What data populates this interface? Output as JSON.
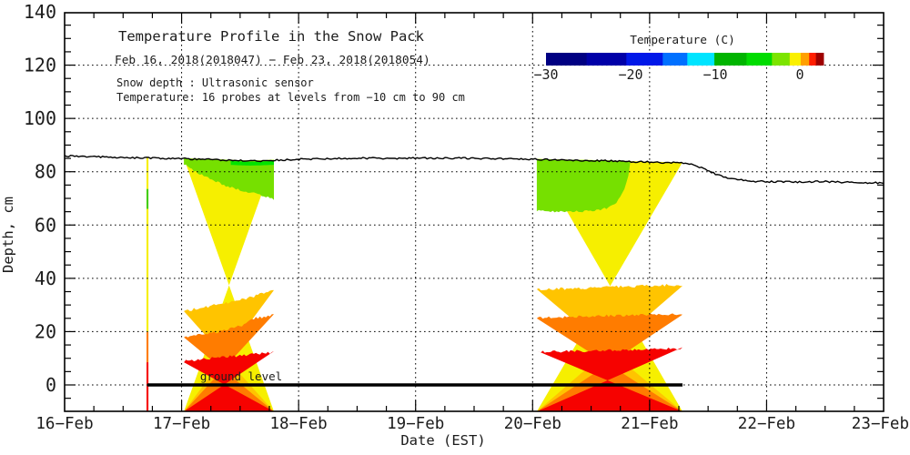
{
  "chart_data": {
    "type": "heatmap",
    "title": "Temperature Profile in the Snow Pack",
    "subtitle": "Feb 16, 2018(2018047) − Feb 23, 2018(2018054)",
    "note1": "Snow depth : Ultrasonic sensor",
    "note2": "Temperature: 16 probes at levels from −10 cm to 90 cm",
    "xlabel": "Date (EST)",
    "ylabel": "Depth, cm",
    "ground_label": "ground level",
    "plot": {
      "x_range_days": [
        16,
        23
      ],
      "ylim": [
        -10,
        140
      ],
      "grid_depths": [
        0,
        20,
        40,
        60,
        80,
        100,
        120
      ],
      "grid_days": [
        17,
        18,
        19,
        20,
        21,
        22
      ],
      "y_minor_step": 5,
      "x_minor_step_day": 0.25
    },
    "y_axis": {
      "ticks": [
        {
          "v": 0,
          "l": "0"
        },
        {
          "v": 20,
          "l": "20"
        },
        {
          "v": 40,
          "l": "40"
        },
        {
          "v": 60,
          "l": "60"
        },
        {
          "v": 80,
          "l": "80"
        },
        {
          "v": 100,
          "l": "100"
        },
        {
          "v": 120,
          "l": "120"
        },
        {
          "v": 140,
          "l": "140"
        }
      ]
    },
    "x_axis": {
      "ticks": [
        {
          "v": 16,
          "l": "16−Feb"
        },
        {
          "v": 17,
          "l": "17−Feb"
        },
        {
          "v": 18,
          "l": "18−Feb"
        },
        {
          "v": 19,
          "l": "19−Feb"
        },
        {
          "v": 20,
          "l": "20−Feb"
        },
        {
          "v": 21,
          "l": "21−Feb"
        },
        {
          "v": 22,
          "l": "22−Feb"
        },
        {
          "v": 23,
          "l": "23−Feb"
        }
      ]
    },
    "colorbar": {
      "title": "Temperature (C)",
      "range": [
        -30,
        2.8
      ],
      "ticks": [
        {
          "value": -30,
          "label": "−30"
        },
        {
          "value": -20,
          "label": "−20"
        },
        {
          "value": -10,
          "label": "−10"
        },
        {
          "value": 0,
          "label": "0"
        }
      ],
      "segments": [
        {
          "from": -30.0,
          "to": -25.2,
          "color": "#000082"
        },
        {
          "from": -25.2,
          "to": -20.5,
          "color": "#0000A8"
        },
        {
          "from": -20.5,
          "to": -16.2,
          "color": "#0018E8"
        },
        {
          "from": -16.2,
          "to": -13.3,
          "color": "#0070FF"
        },
        {
          "from": -13.3,
          "to": -10.1,
          "color": "#00E4FF"
        },
        {
          "from": -10.1,
          "to": -6.3,
          "color": "#00B400"
        },
        {
          "from": -6.3,
          "to": -3.3,
          "color": "#00DC00"
        },
        {
          "from": -3.3,
          "to": -1.2,
          "color": "#7CE400"
        },
        {
          "from": -1.2,
          "to": 0.1,
          "color": "#FAF000"
        },
        {
          "from": 0.1,
          "to": 1.1,
          "color": "#FFA000"
        },
        {
          "from": 1.1,
          "to": 1.9,
          "color": "#FF1E00"
        },
        {
          "from": 1.9,
          "to": 2.8,
          "color": "#9E0000"
        }
      ]
    },
    "colors": {
      "yellow": "#F6EF00",
      "green": "#76E000",
      "green_bright": "#00E300",
      "green_mid": "#43CD00",
      "amber": "#FFC400",
      "orange": "#FF7C00",
      "red": "#F60200",
      "snow_line": "#000000",
      "ground_line": "#000000"
    },
    "ground_line": {
      "depth": 0,
      "x_start_day": 16.708,
      "x_end_day": 21.281
    },
    "snow_depth_line": [
      [
        16.0,
        85.9
      ],
      [
        16.2,
        85.7
      ],
      [
        16.4,
        85.4
      ],
      [
        16.6,
        85.2
      ],
      [
        16.75,
        85.1
      ],
      [
        16.9,
        85.0
      ],
      [
        17.02,
        84.9
      ],
      [
        17.15,
        84.7
      ],
      [
        17.3,
        84.5
      ],
      [
        17.45,
        84.2
      ],
      [
        17.58,
        84.0
      ],
      [
        17.68,
        84.1
      ],
      [
        17.79,
        84.3
      ],
      [
        17.95,
        84.6
      ],
      [
        18.1,
        84.8
      ],
      [
        18.3,
        85.0
      ],
      [
        18.55,
        85.1
      ],
      [
        18.8,
        85.0
      ],
      [
        19.05,
        85.1
      ],
      [
        19.3,
        85.1
      ],
      [
        19.55,
        85.0
      ],
      [
        19.8,
        84.8
      ],
      [
        20.04,
        84.6
      ],
      [
        20.25,
        84.4
      ],
      [
        20.5,
        84.2
      ],
      [
        20.7,
        84.0
      ],
      [
        20.9,
        83.7
      ],
      [
        21.1,
        83.5
      ],
      [
        21.28,
        83.4
      ],
      [
        21.38,
        82.6
      ],
      [
        21.48,
        80.8
      ],
      [
        21.58,
        78.8
      ],
      [
        21.72,
        77.2
      ],
      [
        21.88,
        76.4
      ],
      [
        22.05,
        76.2
      ],
      [
        22.25,
        76.1
      ],
      [
        22.45,
        76.3
      ],
      [
        22.65,
        76.1
      ],
      [
        22.85,
        75.9
      ],
      [
        23.0,
        75.8
      ]
    ],
    "bands": [
      {
        "name": "thin-event-feb16",
        "x0": 16.7,
        "x1": 16.7165,
        "segments": [
          {
            "color": "yellow",
            "top": 85.2,
            "bottom": 73.5
          },
          {
            "color": "green_mid",
            "top": 73.5,
            "bottom": 66.0
          },
          {
            "color": "yellow",
            "top": 66.0,
            "bottom": 19.8
          },
          {
            "color": "orange",
            "top": 19.8,
            "bottom": 8.5
          },
          {
            "color": "red",
            "top": 8.5,
            "bottom": -10
          }
        ]
      },
      {
        "name": "event-feb17",
        "x0": 17.02,
        "x1": 17.789,
        "green_bottom": [
          [
            17.02,
            83.0
          ],
          [
            17.1,
            80.5
          ],
          [
            17.18,
            78.6
          ],
          [
            17.3,
            76.3
          ],
          [
            17.39,
            74.5
          ],
          [
            17.5,
            73.2
          ],
          [
            17.63,
            71.8
          ],
          [
            17.72,
            70.8
          ],
          [
            17.789,
            69.5
          ]
        ],
        "bright_strip": {
          "x0": 17.42,
          "x1": 17.789,
          "thickness_cm": 1.7
        },
        "amber_top": [
          [
            17.02,
            27.7
          ],
          [
            17.15,
            28.8
          ],
          [
            17.3,
            30.1
          ],
          [
            17.45,
            31.3
          ],
          [
            17.6,
            33.0
          ],
          [
            17.7,
            34.5
          ],
          [
            17.789,
            35.9
          ]
        ],
        "orange_top": [
          [
            17.02,
            18.1
          ],
          [
            17.2,
            19.0
          ],
          [
            17.35,
            20.3
          ],
          [
            17.5,
            22.0
          ],
          [
            17.63,
            25.0
          ],
          [
            17.789,
            26.2
          ]
        ],
        "red_top": [
          [
            17.02,
            8.9
          ],
          [
            17.3,
            10.3
          ],
          [
            17.55,
            11.2
          ],
          [
            17.789,
            12.3
          ]
        ]
      },
      {
        "name": "event-feb20",
        "x0": 20.036,
        "x1": 21.281,
        "green_x1": 20.835,
        "green_bottom": [
          [
            20.036,
            65.3
          ],
          [
            20.3,
            65.0
          ],
          [
            20.5,
            65.2
          ],
          [
            20.65,
            66.5
          ],
          [
            20.73,
            69.0
          ],
          [
            20.79,
            74.0
          ],
          [
            20.82,
            79.0
          ],
          [
            20.835,
            83.2
          ]
        ],
        "amber_top": [
          [
            20.036,
            35.9
          ],
          [
            20.4,
            36.3
          ],
          [
            20.8,
            36.9
          ],
          [
            21.281,
            37.6
          ]
        ],
        "orange_top": [
          [
            20.036,
            25.3
          ],
          [
            20.6,
            25.9
          ],
          [
            21.281,
            26.7
          ]
        ],
        "red_top": [
          [
            20.036,
            12.3
          ],
          [
            20.7,
            13.0
          ],
          [
            21.281,
            13.7
          ]
        ]
      }
    ]
  }
}
